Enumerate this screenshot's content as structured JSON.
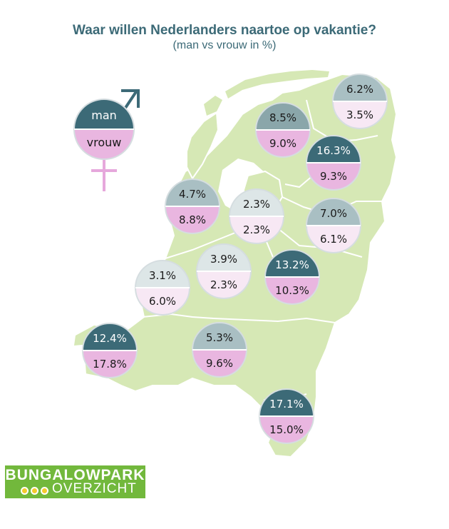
{
  "header": {
    "title": "Waar willen Nederlanders naartoe op vakantie?",
    "subtitle": "(man vs vrouw in %)"
  },
  "legend": {
    "man_label": "man",
    "vrouw_label": "vrouw",
    "man_symbol": "male-symbol-icon",
    "vrouw_symbol": "female-symbol-icon"
  },
  "logo": {
    "line1": "BUNGALOWPARK",
    "line2": "OVERZICHT"
  },
  "colors": {
    "map_land": "#d6e8b5",
    "map_border": "#ffffff",
    "man_strong": "#3c6a77",
    "man_medium": "#8aa6aa",
    "man_light": "#a9bfc3",
    "man_pale": "#dde6e7",
    "vrouw_strong": "#e9b6e0",
    "vrouw_pale": "#f7e8f4",
    "title_color": "#3c6a77",
    "logo_green": "#72b83c"
  },
  "chart_data": {
    "type": "table",
    "title": "Waar willen Nederlanders naartoe op vakantie?",
    "subtitle": "(man vs vrouw in %)",
    "series": [
      {
        "name": "man"
      },
      {
        "name": "vrouw"
      }
    ],
    "regions": [
      {
        "man": "6.2%",
        "vrouw": "3.5%"
      },
      {
        "man": "8.5%",
        "vrouw": "9.0%"
      },
      {
        "man": "16.3%",
        "vrouw": "9.3%"
      },
      {
        "man": "4.7%",
        "vrouw": "8.8%"
      },
      {
        "man": "2.3%",
        "vrouw": "2.3%"
      },
      {
        "man": "7.0%",
        "vrouw": "6.1%"
      },
      {
        "man": "3.9%",
        "vrouw": "2.3%"
      },
      {
        "man": "13.2%",
        "vrouw": "10.3%"
      },
      {
        "man": "3.1%",
        "vrouw": "6.0%"
      },
      {
        "man": "12.4%",
        "vrouw": "17.8%"
      },
      {
        "man": "5.3%",
        "vrouw": "9.6%"
      },
      {
        "man": "17.1%",
        "vrouw": "15.0%"
      }
    ]
  }
}
